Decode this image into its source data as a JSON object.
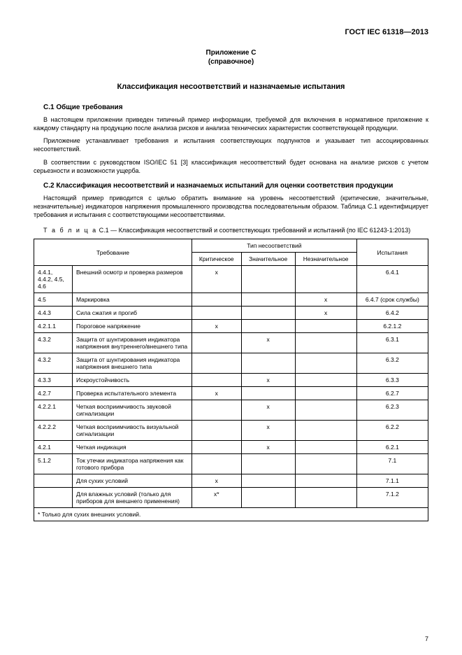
{
  "doc_id": "ГОСТ IEC 61318—2013",
  "annex_title": "Приложение С",
  "annex_sub": "(справочное)",
  "main_title": "Классификация несоответствий и назначаемые испытания",
  "sec_c1_head": "С.1 Общие требования",
  "c1_p1": "В настоящем приложении приведен типичный пример информации, требуемой для включения в нормативное приложение к каждому стандарту на продукцию после анализа рисков и анализа технических характеристик соответствующей продукции.",
  "c1_p2": "Приложение устанавливает требования и испытания соответствующих подпунктов и указывает тип ассоциированных несоответствий.",
  "c1_p3": "В соответствии с руководством ISO/IEC 51 [3] классификация несоответствий будет основана на анализе рисков с учетом серьезности и возможности ущерба.",
  "sec_c2_head": "С.2 Классификация несоответствий и назначаемых испытаний для оценки соответствия продукции",
  "c2_p1": "Настоящий пример приводится с целью обратить внимание на уровень несоответствий (критические, значительные, незначительные) индикаторов напряжения промышленного производства последовательным образом. Таблица С.1 идентифицирует требования и испытания с соответствующими несоответствиями.",
  "table_caption_label": "Т а б л и ц а",
  "table_caption_rest": " С.1 — Классификация несоответствий и соответствующих требований и испытаний (по IEC 61243-1:2013)",
  "th_req": "Требование",
  "th_type": "Тип несоответствий",
  "th_crit": "Критическое",
  "th_major": "Значительное",
  "th_minor": "Незначительное",
  "th_test": "Испытания",
  "rows": [
    {
      "num": "4.4.1, 4.4.2, 4.5, 4.6",
      "text": "Внешний осмотр и проверка размеров",
      "crit": "x",
      "major": "",
      "minor": "",
      "test": "6.4.1"
    },
    {
      "num": "4.5",
      "text": "Маркировка",
      "crit": "",
      "major": "",
      "minor": "x",
      "test": "6.4.7 (срок службы)"
    },
    {
      "num": "4.4.3",
      "text": "Сила сжатия и прогиб",
      "crit": "",
      "major": "",
      "minor": "x",
      "test": "6.4.2"
    },
    {
      "num": "4.2.1.1",
      "text": "Пороговое напряжение",
      "crit": "x",
      "major": "",
      "minor": "",
      "test": "6.2.1.2"
    },
    {
      "num": "4.3.2",
      "text": "Защита от шунтирования индикатора напряжения внутреннего/внешнего типа",
      "crit": "",
      "major": "x",
      "minor": "",
      "test": "6.3.1"
    },
    {
      "num": "4.3.2",
      "text": "Защита от шунтирования индикатора напряжения внешнего типа",
      "crit": "",
      "major": "",
      "minor": "",
      "test": "6.3.2"
    },
    {
      "num": "4.3.3",
      "text": "Искроустойчивость",
      "crit": "",
      "major": "x",
      "minor": "",
      "test": "6.3.3"
    },
    {
      "num": "4.2.7",
      "text": "Проверка испытательного элемента",
      "crit": "x",
      "major": "",
      "minor": "",
      "test": "6.2.7"
    },
    {
      "num": "4.2.2.1",
      "text": "Четкая восприимчивость звуковой сигнализации",
      "crit": "",
      "major": "x",
      "minor": "",
      "test": "6.2.3"
    },
    {
      "num": "4.2.2.2",
      "text": "Четкая восприимчивость визуальной сигнализации",
      "crit": "",
      "major": "x",
      "minor": "",
      "test": "6.2.2"
    },
    {
      "num": "4.2.1",
      "text": "Четкая индикация",
      "crit": "",
      "major": "x",
      "minor": "",
      "test": "6.2.1"
    },
    {
      "num": "5.1.2",
      "text": "Ток утечки индикатора напряжения как готового прибора",
      "crit": "",
      "major": "",
      "minor": "",
      "test": "7.1"
    },
    {
      "num": "",
      "text": "Для сухих условий",
      "crit": "x",
      "major": "",
      "minor": "",
      "test": "7.1.1"
    },
    {
      "num": "",
      "text": "Для влажных условий (только для приборов для внешнего применения)",
      "crit": "x*",
      "major": "",
      "minor": "",
      "test": "7.1.2"
    }
  ],
  "footnote": "* Только для сухих внешних условий.",
  "page_number": "7"
}
